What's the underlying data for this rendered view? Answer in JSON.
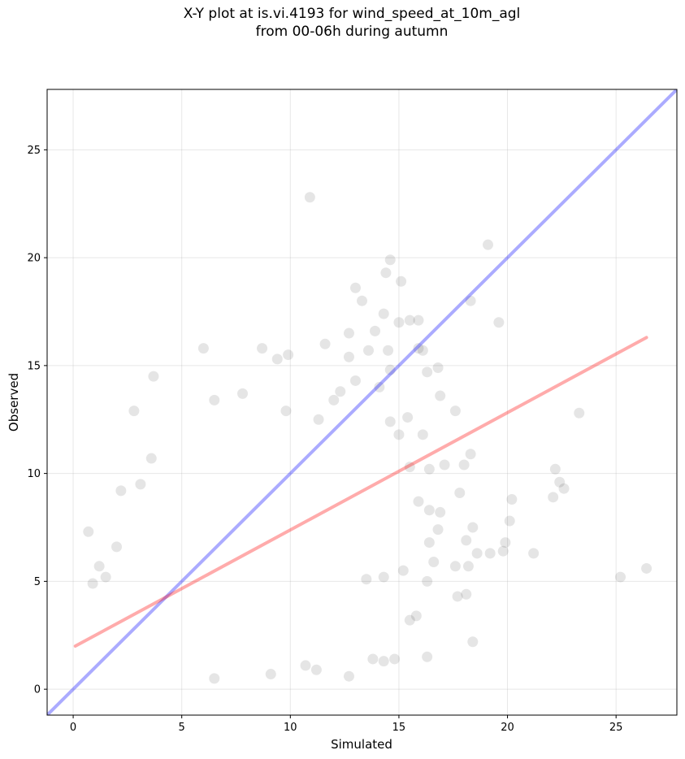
{
  "chart_data": {
    "type": "scatter",
    "title": "X-Y plot at is.vi.4193 for wind_speed_at_10m_agl",
    "subtitle": "from 00-06h during autumn",
    "xlabel": "Simulated",
    "ylabel": "Observed",
    "xlim": [
      -1.2,
      27.8
    ],
    "ylim": [
      -1.2,
      27.8
    ],
    "xticks": [
      0,
      5,
      10,
      15,
      20,
      25
    ],
    "yticks": [
      0,
      5,
      10,
      15,
      20,
      25
    ],
    "grid": true,
    "colors": {
      "points": "#000000",
      "one_to_one_line": "#0000ff",
      "fit_line": "#ff0000"
    },
    "lines": [
      {
        "role": "1:1 reference",
        "x": [
          -1.2,
          27.8
        ],
        "y": [
          -1.2,
          27.8
        ]
      },
      {
        "role": "linear fit",
        "x": [
          0.1,
          26.4
        ],
        "y": [
          2.0,
          16.3
        ]
      }
    ],
    "points": [
      [
        10.9,
        22.8
      ],
      [
        19.1,
        20.6
      ],
      [
        14.6,
        19.9
      ],
      [
        14.4,
        19.3
      ],
      [
        15.1,
        18.9
      ],
      [
        13.0,
        18.6
      ],
      [
        18.3,
        18.0
      ],
      [
        13.3,
        18.0
      ],
      [
        14.3,
        17.4
      ],
      [
        19.6,
        17.0
      ],
      [
        15.5,
        17.1
      ],
      [
        15.9,
        17.1
      ],
      [
        15.0,
        17.0
      ],
      [
        13.9,
        16.6
      ],
      [
        12.7,
        16.5
      ],
      [
        11.6,
        16.0
      ],
      [
        15.9,
        15.8
      ],
      [
        6.0,
        15.8
      ],
      [
        8.7,
        15.8
      ],
      [
        13.6,
        15.7
      ],
      [
        14.5,
        15.7
      ],
      [
        16.1,
        15.7
      ],
      [
        9.9,
        15.5
      ],
      [
        12.7,
        15.4
      ],
      [
        9.4,
        15.3
      ],
      [
        3.7,
        14.5
      ],
      [
        13.0,
        14.3
      ],
      [
        14.6,
        14.8
      ],
      [
        16.8,
        14.9
      ],
      [
        16.3,
        14.7
      ],
      [
        14.1,
        14.0
      ],
      [
        12.0,
        13.4
      ],
      [
        12.3,
        13.8
      ],
      [
        6.5,
        13.4
      ],
      [
        7.8,
        13.7
      ],
      [
        9.8,
        12.9
      ],
      [
        2.8,
        12.9
      ],
      [
        15.4,
        12.6
      ],
      [
        16.9,
        13.6
      ],
      [
        23.3,
        12.8
      ],
      [
        17.6,
        12.9
      ],
      [
        11.3,
        12.5
      ],
      [
        14.6,
        12.4
      ],
      [
        15.0,
        11.8
      ],
      [
        16.1,
        11.8
      ],
      [
        3.6,
        10.7
      ],
      [
        18.3,
        10.9
      ],
      [
        16.4,
        10.2
      ],
      [
        17.1,
        10.4
      ],
      [
        18.0,
        10.4
      ],
      [
        22.2,
        10.2
      ],
      [
        15.5,
        10.3
      ],
      [
        22.4,
        9.6
      ],
      [
        22.6,
        9.3
      ],
      [
        17.8,
        9.1
      ],
      [
        2.2,
        9.2
      ],
      [
        3.1,
        9.5
      ],
      [
        20.2,
        8.8
      ],
      [
        15.9,
        8.7
      ],
      [
        16.4,
        8.3
      ],
      [
        16.9,
        8.2
      ],
      [
        22.1,
        8.9
      ],
      [
        20.1,
        7.8
      ],
      [
        18.4,
        7.5
      ],
      [
        16.8,
        7.4
      ],
      [
        19.9,
        6.8
      ],
      [
        16.4,
        6.8
      ],
      [
        18.1,
        6.9
      ],
      [
        19.2,
        6.3
      ],
      [
        18.6,
        6.3
      ],
      [
        19.8,
        6.4
      ],
      [
        21.2,
        6.3
      ],
      [
        17.6,
        5.7
      ],
      [
        18.2,
        5.7
      ],
      [
        16.6,
        5.9
      ],
      [
        16.3,
        5.0
      ],
      [
        15.2,
        5.5
      ],
      [
        14.3,
        5.2
      ],
      [
        13.5,
        5.1
      ],
      [
        25.2,
        5.2
      ],
      [
        26.4,
        5.6
      ],
      [
        17.7,
        4.3
      ],
      [
        18.1,
        4.4
      ],
      [
        15.8,
        3.4
      ],
      [
        15.5,
        3.2
      ],
      [
        18.4,
        2.2
      ],
      [
        16.3,
        1.5
      ],
      [
        14.8,
        1.4
      ],
      [
        14.3,
        1.3
      ],
      [
        13.8,
        1.4
      ],
      [
        12.7,
        0.6
      ],
      [
        11.2,
        0.9
      ],
      [
        10.7,
        1.1
      ],
      [
        9.1,
        0.7
      ],
      [
        6.5,
        0.5
      ],
      [
        0.7,
        7.3
      ],
      [
        0.9,
        4.9
      ],
      [
        1.2,
        5.7
      ],
      [
        1.5,
        5.2
      ],
      [
        2.0,
        6.6
      ]
    ]
  }
}
